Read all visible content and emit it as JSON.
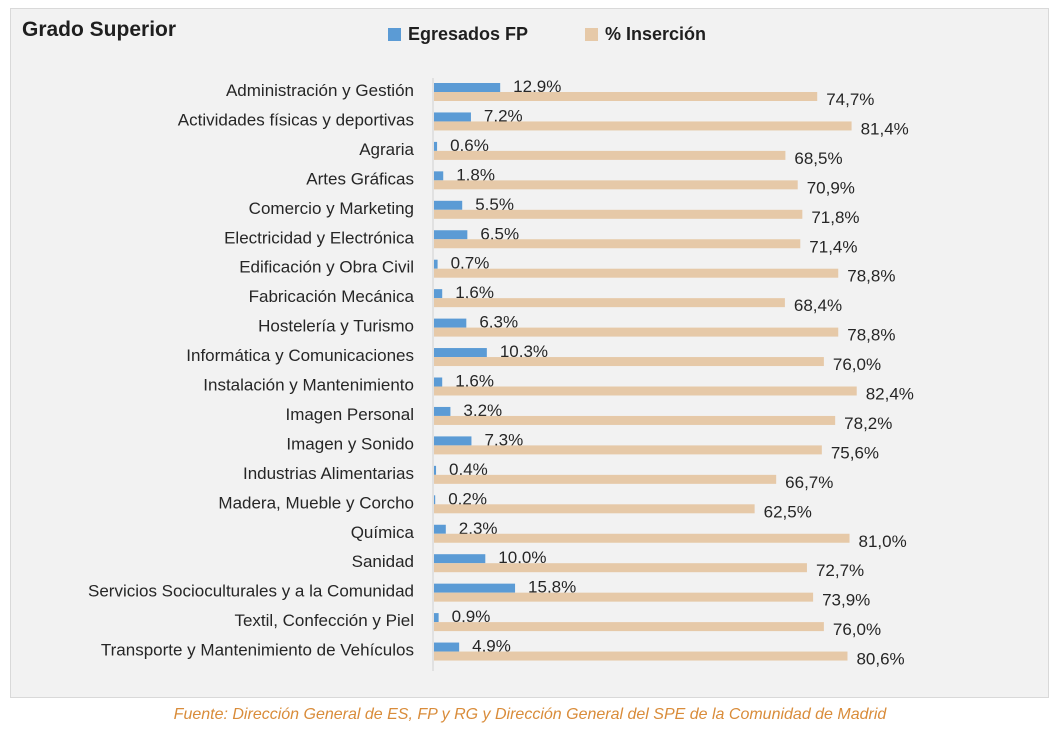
{
  "chart_data": {
    "type": "bar",
    "orientation": "horizontal",
    "title": "Grado Superior",
    "categories": [
      "Administración y Gestión",
      "Actividades físicas y deportivas",
      "Agraria",
      "Artes Gráficas",
      "Comercio y Marketing",
      "Electricidad y Electrónica",
      "Edificación y Obra Civil",
      "Fabricación Mecánica",
      "Hostelería y Turismo",
      "Informática y Comunicaciones",
      "Instalación y Mantenimiento",
      "Imagen Personal",
      "Imagen y Sonido",
      "Industrias Alimentarias",
      "Madera, Mueble y Corcho",
      "Química",
      "Sanidad",
      "Servicios Socioculturales y a la Comunidad",
      "Textil, Confección y Piel",
      "Transporte y Mantenimiento de Vehículos"
    ],
    "series": [
      {
        "name": "Egresados FP",
        "color": "#5b9bd5",
        "values": [
          12.9,
          7.2,
          0.6,
          1.8,
          5.5,
          6.5,
          0.7,
          1.6,
          6.3,
          10.3,
          1.6,
          3.2,
          7.3,
          0.4,
          0.2,
          2.3,
          10.0,
          15.8,
          0.9,
          4.9
        ],
        "labels": [
          "12,9%",
          "7,2%",
          "0,6%",
          "1,8%",
          "5,5%",
          "6,5%",
          "0,7%",
          "1,6%",
          "6,3%",
          "10,3%",
          "1,6%",
          "3,2%",
          "7,3%",
          "0,4%",
          "0,2%",
          "2,3%",
          "10,0%",
          "15,8%",
          "0,9%",
          "4,9%"
        ]
      },
      {
        "name": "% Inserción",
        "color": "#e6c9a8",
        "values": [
          74.7,
          81.4,
          68.5,
          70.9,
          71.8,
          71.4,
          78.8,
          68.4,
          78.8,
          76.0,
          82.4,
          78.2,
          75.6,
          66.7,
          62.5,
          81.0,
          72.7,
          73.9,
          76.0,
          80.6
        ],
        "labels": [
          "74,7%",
          "81,4%",
          "68,5%",
          "70,9%",
          "71,8%",
          "71,4%",
          "78,8%",
          "68,4%",
          "78,8%",
          "76,0%",
          "82,4%",
          "78,2%",
          "75,6%",
          "66,7%",
          "62,5%",
          "81,0%",
          "72,7%",
          "73,9%",
          "76,0%",
          "80,6%"
        ]
      }
    ],
    "legend": "top",
    "grid": false
  },
  "source": "Fuente: Dirección General de ES, FP y RG y Dirección General del SPE de la Comunidad de Madrid"
}
